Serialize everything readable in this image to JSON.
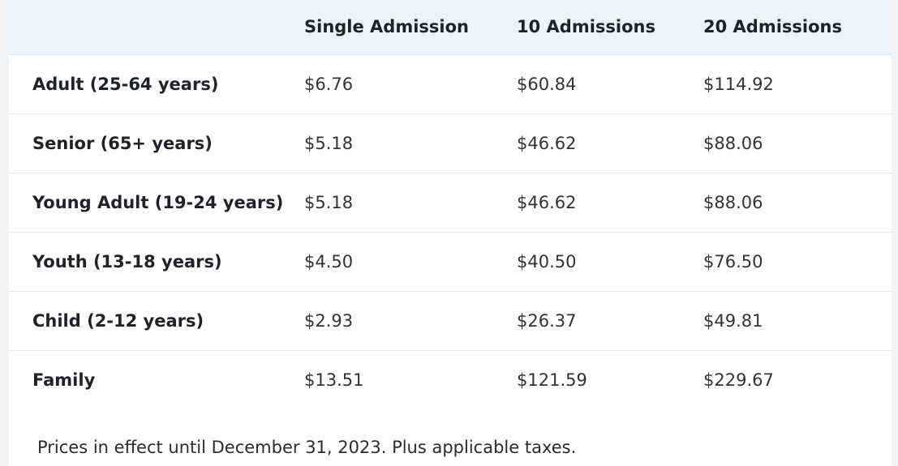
{
  "table": {
    "headers": [
      "",
      "Single Admission",
      "10 Admissions",
      "20 Admissions"
    ],
    "rows": [
      {
        "label": "Adult (25-64 years)",
        "single": "$6.76",
        "ten": "$60.84",
        "twenty": "$114.92"
      },
      {
        "label": "Senior (65+ years)",
        "single": "$5.18",
        "ten": "$46.62",
        "twenty": "$88.06"
      },
      {
        "label": "Young Adult (19-24 years)",
        "single": "$5.18",
        "ten": "$46.62",
        "twenty": "$88.06"
      },
      {
        "label": "Youth (13-18 years)",
        "single": "$4.50",
        "ten": "$40.50",
        "twenty": "$76.50"
      },
      {
        "label": "Child (2-12 years)",
        "single": "$2.93",
        "ten": "$26.37",
        "twenty": "$49.81"
      },
      {
        "label": "Family",
        "single": "$13.51",
        "ten": "$121.59",
        "twenty": "$229.67"
      }
    ]
  },
  "note": "Prices in effect until December 31, 2023. Plus applicable taxes."
}
